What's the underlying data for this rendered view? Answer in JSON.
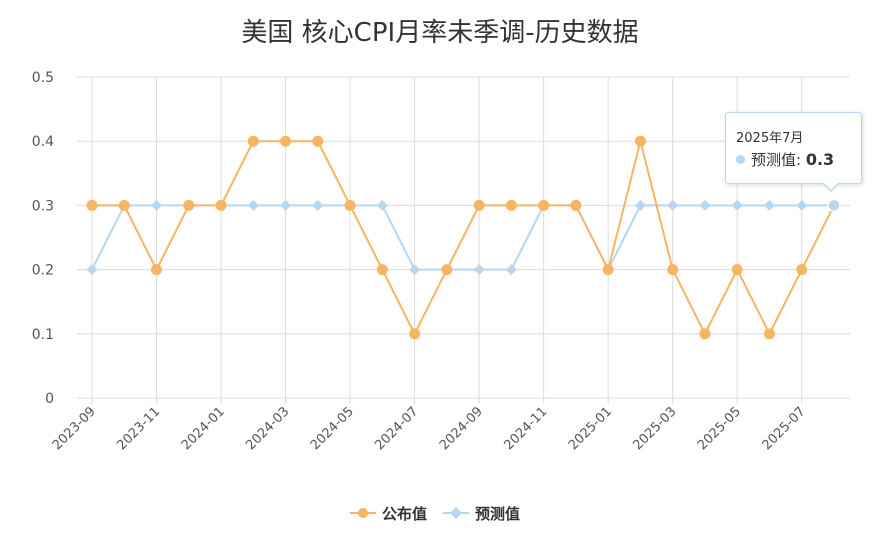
{
  "chart_data": {
    "type": "line",
    "title": "美国 核心CPI月率未季调-历史数据",
    "x": [
      "2023-09",
      "2023-10",
      "2023-11",
      "2023-12",
      "2024-01",
      "2024-02",
      "2024-03",
      "2024-04",
      "2024-05",
      "2024-06",
      "2024-07",
      "2024-08",
      "2024-09",
      "2024-10",
      "2024-11",
      "2024-12",
      "2025-01",
      "2025-02",
      "2025-03",
      "2025-04",
      "2025-05",
      "2025-06",
      "2025-07",
      "2025-08"
    ],
    "x_tick_labels": [
      "2023-09",
      "2023-11",
      "2024-01",
      "2024-03",
      "2024-05",
      "2024-07",
      "2024-09",
      "2024-11",
      "2025-01",
      "2025-03",
      "2025-05",
      "2025-07"
    ],
    "y_tick_labels": [
      "0.5",
      "0.4",
      "0.3",
      "0.2",
      "0.1",
      "0"
    ],
    "ylim": [
      0,
      0.5
    ],
    "grid": true,
    "legend_position": "bottom-center",
    "series": [
      {
        "name": "公布值",
        "color": "#f7b461",
        "marker": "circle",
        "values": [
          0.3,
          0.3,
          0.2,
          0.3,
          0.3,
          0.4,
          0.4,
          0.4,
          0.3,
          0.2,
          0.1,
          0.2,
          0.3,
          0.3,
          0.3,
          0.3,
          0.2,
          0.4,
          0.2,
          0.1,
          0.2,
          0.1,
          0.2,
          0.3
        ]
      },
      {
        "name": "预测值",
        "color": "#b7d7f0",
        "marker": "diamond",
        "values": [
          0.2,
          0.3,
          0.3,
          0.3,
          0.3,
          0.3,
          0.3,
          0.3,
          0.3,
          0.3,
          0.2,
          0.2,
          0.2,
          0.2,
          0.3,
          0.3,
          0.2,
          0.3,
          0.3,
          0.3,
          0.3,
          0.3,
          0.3,
          0.3
        ]
      }
    ]
  },
  "tooltip": {
    "header": "2025年7月",
    "series_label": "预测值: ",
    "value": "0.3"
  }
}
